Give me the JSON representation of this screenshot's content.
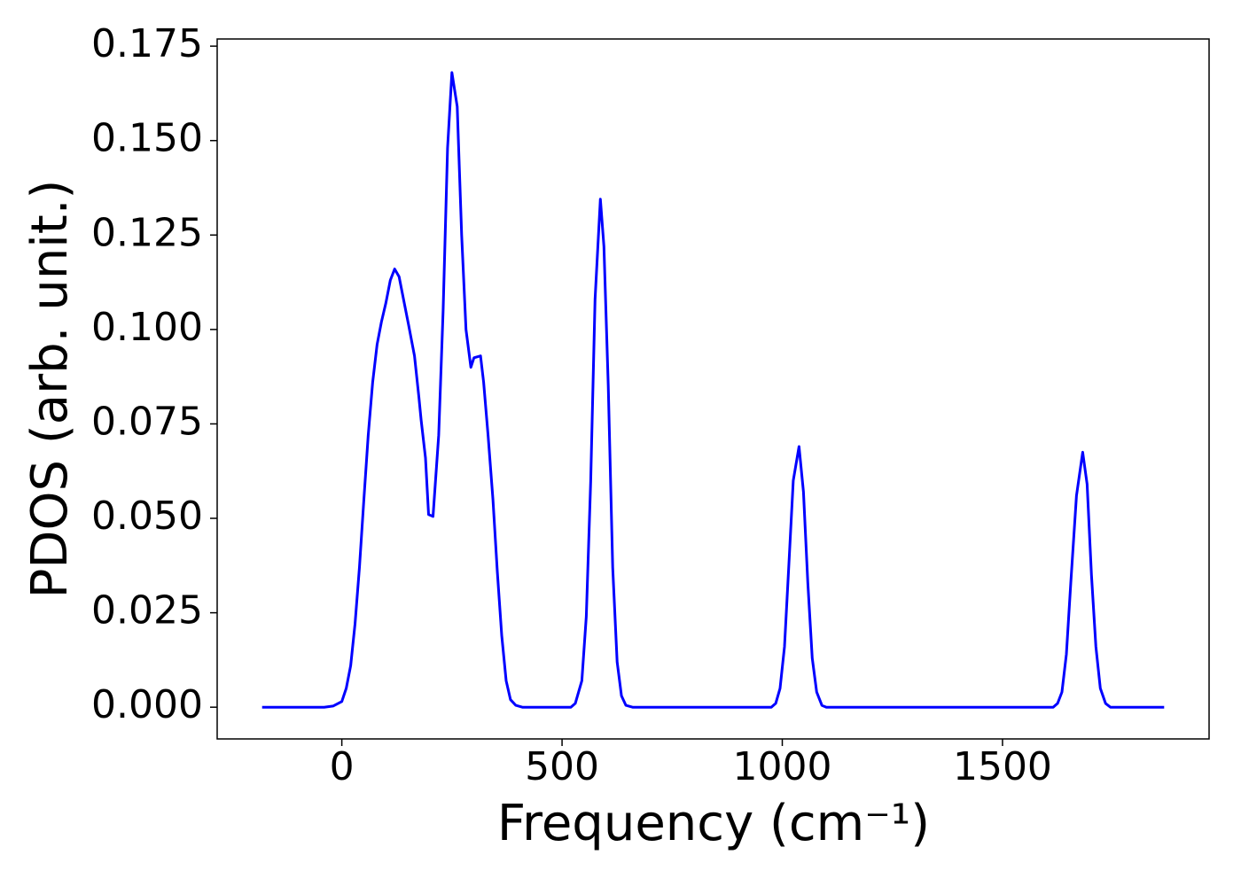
{
  "chart_data": {
    "type": "line",
    "xlabel": "Frequency (cm⁻¹)",
    "ylabel": "PDOS (arb. unit.)",
    "xlim": [
      -283,
      1969
    ],
    "ylim": [
      -0.0084,
      0.1769
    ],
    "xticks": [
      0,
      500,
      1000,
      1500
    ],
    "yticks": [
      {
        "value": 0,
        "label": "0.000"
      },
      {
        "value": 0.025,
        "label": "0.025"
      },
      {
        "value": 0.05,
        "label": "0.050"
      },
      {
        "value": 0.075,
        "label": "0.075"
      },
      {
        "value": 0.1,
        "label": "0.100"
      },
      {
        "value": 0.125,
        "label": "0.125"
      },
      {
        "value": 0.15,
        "label": "0.150"
      },
      {
        "value": 0.175,
        "label": "0.175"
      }
    ],
    "grid": false,
    "series": [
      {
        "color": "#0000ff",
        "x": [
          -181,
          -100,
          -40,
          -20,
          0,
          10,
          20,
          30,
          40,
          50,
          60,
          70,
          80,
          90,
          100,
          110,
          120,
          130,
          140,
          152,
          165,
          175,
          180,
          190,
          197,
          207,
          220,
          230,
          240,
          250,
          262,
          272,
          282,
          293,
          300,
          315,
          322,
          332,
          343,
          353,
          363,
          373,
          383,
          395,
          410,
          520,
          530,
          545,
          555,
          565,
          575,
          587,
          595,
          605,
          615,
          625,
          635,
          645,
          660,
          975,
          985,
          995,
          1005,
          1015,
          1025,
          1038,
          1048,
          1058,
          1068,
          1078,
          1090,
          1100,
          1615,
          1625,
          1635,
          1645,
          1655,
          1668,
          1682,
          1692,
          1702,
          1712,
          1722,
          1734,
          1745,
          1867
        ],
        "values": [
          0,
          0,
          0,
          0.0003,
          0.0015,
          0.005,
          0.011,
          0.022,
          0.037,
          0.055,
          0.072,
          0.086,
          0.096,
          0.102,
          0.107,
          0.113,
          0.116,
          0.114,
          0.108,
          0.101,
          0.093,
          0.082,
          0.076,
          0.066,
          0.051,
          0.0505,
          0.072,
          0.105,
          0.148,
          0.168,
          0.159,
          0.125,
          0.1,
          0.09,
          0.0925,
          0.093,
          0.086,
          0.072,
          0.055,
          0.036,
          0.019,
          0.007,
          0.002,
          0.0005,
          0,
          0,
          0.001,
          0.007,
          0.024,
          0.06,
          0.108,
          0.1345,
          0.122,
          0.085,
          0.037,
          0.012,
          0.003,
          0.0005,
          0,
          0,
          0.001,
          0.005,
          0.016,
          0.038,
          0.06,
          0.069,
          0.057,
          0.033,
          0.013,
          0.004,
          0.0005,
          0,
          0,
          0.001,
          0.004,
          0.014,
          0.033,
          0.056,
          0.0675,
          0.059,
          0.035,
          0.016,
          0.005,
          0.001,
          0,
          0
        ]
      }
    ]
  }
}
